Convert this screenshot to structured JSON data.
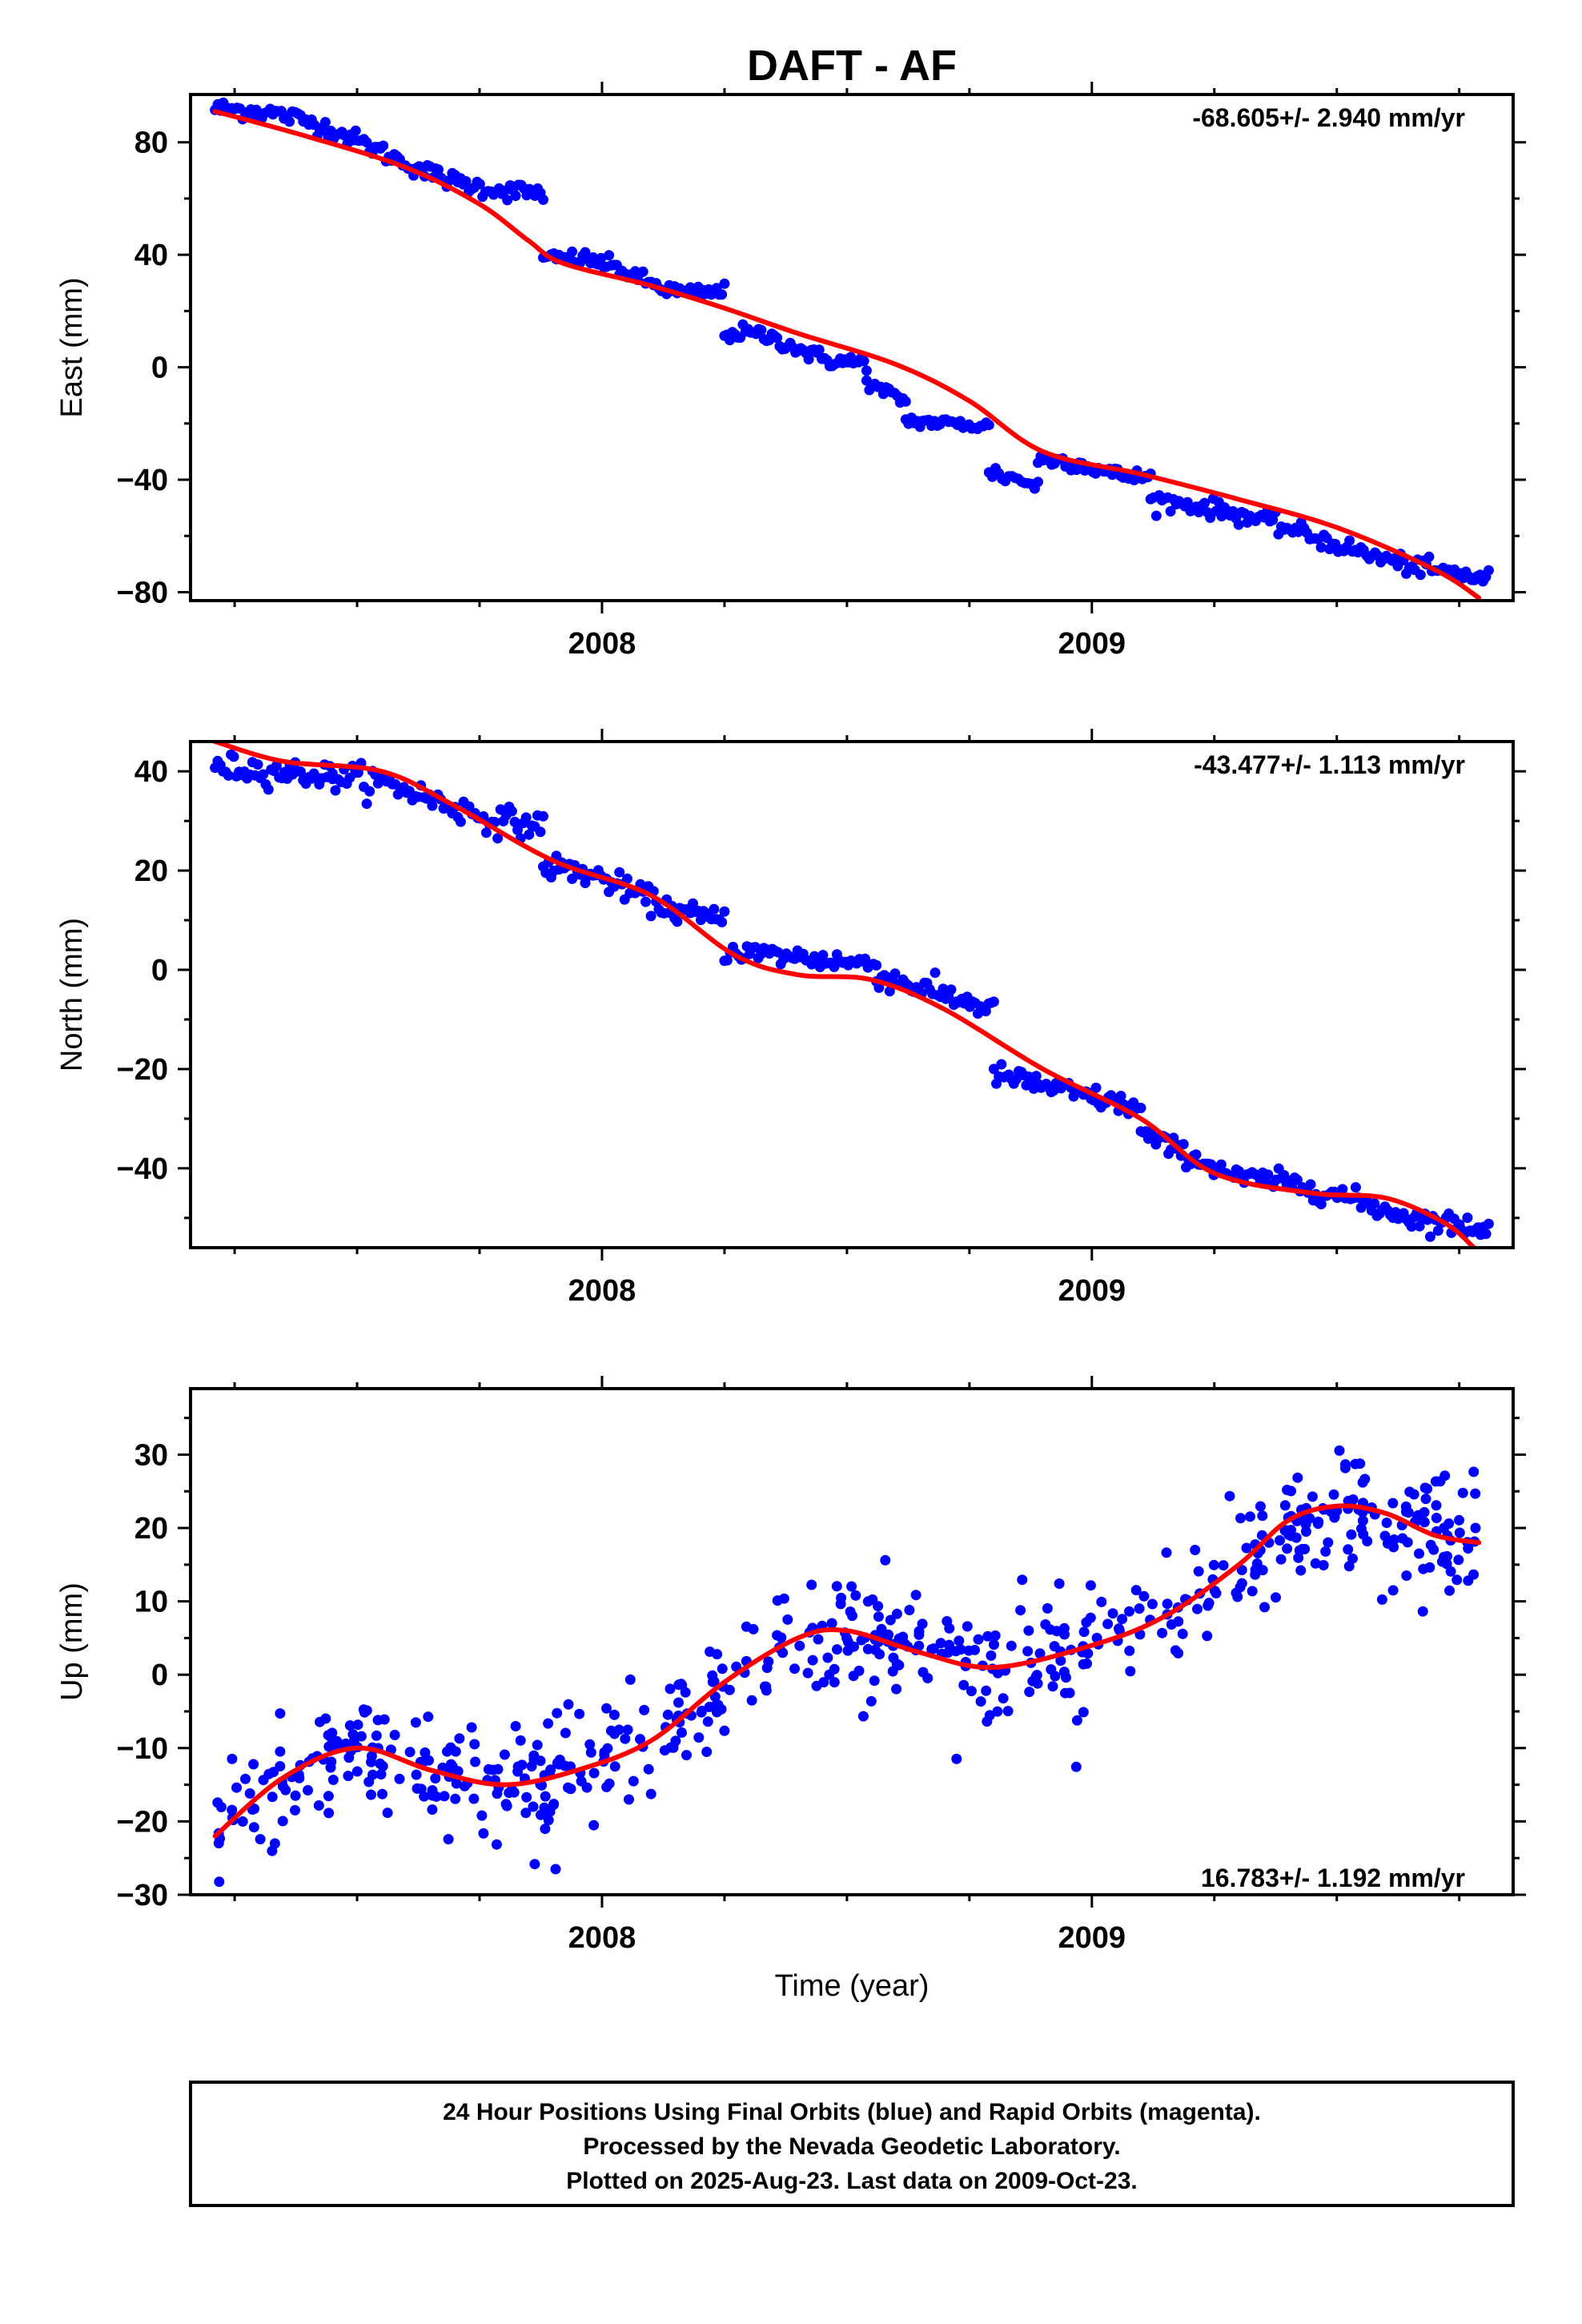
{
  "title": "DAFT - AF",
  "colors": {
    "data": "#0000ff",
    "model": "#ff0000",
    "frame": "#000000"
  },
  "chart_data": [
    {
      "type": "scatter",
      "id": "east",
      "ylabel": "East (mm)",
      "xlabel": "",
      "rate_label": "-68.605+/- 2.940 mm/yr",
      "rate_position": "top-right",
      "xlim": [
        2007.16,
        2009.86
      ],
      "ylim": [
        -83,
        97
      ],
      "yticks": [
        -80,
        -40,
        0,
        40,
        80
      ],
      "xtick_labels": [
        "2008",
        "2009"
      ],
      "xtick_values": [
        2008.0,
        2009.0
      ],
      "grid": false,
      "segments": [
        {
          "x0": 2007.21,
          "x1": 2007.88,
          "y0": 92,
          "y1": 62,
          "wave": 4,
          "noise": 1.6,
          "n": 120
        },
        {
          "x0": 2007.88,
          "x1": 2008.25,
          "y0": 38,
          "y1": 27,
          "wave": 3,
          "noise": 1.4,
          "n": 70
        },
        {
          "x0": 2008.25,
          "x1": 2008.54,
          "y0": 12,
          "y1": 2,
          "wave": 2,
          "noise": 1.4,
          "n": 55
        },
        {
          "x0": 2008.54,
          "x1": 2008.62,
          "y0": -6,
          "y1": -12,
          "wave": 0,
          "noise": 1.2,
          "n": 15
        },
        {
          "x0": 2008.62,
          "x1": 2008.79,
          "y0": -19,
          "y1": -21,
          "wave": 0,
          "noise": 1.1,
          "n": 30
        },
        {
          "x0": 2008.79,
          "x1": 2008.89,
          "y0": -37,
          "y1": -42,
          "wave": 0,
          "noise": 1.5,
          "n": 16
        },
        {
          "x0": 2008.89,
          "x1": 2009.12,
          "y0": -33,
          "y1": -39,
          "wave": 1,
          "noise": 1.3,
          "n": 42
        },
        {
          "x0": 2009.12,
          "x1": 2009.81,
          "y0": -47,
          "y1": -75,
          "wave": 2,
          "noise": 1.6,
          "n": 120
        }
      ],
      "model": {
        "x": [
          2007.21,
          2007.4,
          2007.6,
          2007.75,
          2007.85,
          2007.92,
          2008.1,
          2008.25,
          2008.4,
          2008.6,
          2008.75,
          2008.9,
          2009.1,
          2009.3,
          2009.5,
          2009.7,
          2009.79
        ],
        "y": [
          91,
          82,
          71,
          58,
          45,
          37,
          29,
          21,
          12,
          1,
          -12,
          -30,
          -38,
          -47,
          -57,
          -72,
          -82
        ]
      }
    },
    {
      "type": "scatter",
      "id": "north",
      "ylabel": "North (mm)",
      "xlabel": "",
      "rate_label": "-43.477+/- 1.113 mm/yr",
      "rate_position": "top-right",
      "xlim": [
        2007.16,
        2009.86
      ],
      "ylim": [
        -56,
        46
      ],
      "yticks": [
        -40,
        -20,
        0,
        20,
        40
      ],
      "xtick_labels": [
        "2008",
        "2009"
      ],
      "xtick_values": [
        2008.0,
        2009.0
      ],
      "grid": false,
      "segments": [
        {
          "x0": 2007.21,
          "x1": 2007.45,
          "y0": 41,
          "y1": 39,
          "wave": 0,
          "noise": 1.3,
          "n": 45
        },
        {
          "x0": 2007.45,
          "x1": 2007.88,
          "y0": 39,
          "y1": 29,
          "wave": 1,
          "noise": 1.4,
          "n": 75
        },
        {
          "x0": 2007.88,
          "x1": 2008.25,
          "y0": 21,
          "y1": 10,
          "wave": 1,
          "noise": 1.2,
          "n": 70
        },
        {
          "x0": 2008.25,
          "x1": 2008.56,
          "y0": 4,
          "y1": 1,
          "wave": 0,
          "noise": 1.1,
          "n": 55
        },
        {
          "x0": 2008.56,
          "x1": 2008.8,
          "y0": -1,
          "y1": -8,
          "wave": 0,
          "noise": 1.2,
          "n": 45
        },
        {
          "x0": 2008.8,
          "x1": 2009.1,
          "y0": -21,
          "y1": -28,
          "wave": 0,
          "noise": 1.1,
          "n": 60
        },
        {
          "x0": 2009.1,
          "x1": 2009.3,
          "y0": -33,
          "y1": -42,
          "wave": 0,
          "noise": 1.0,
          "n": 40
        },
        {
          "x0": 2009.3,
          "x1": 2009.81,
          "y0": -42,
          "y1": -52,
          "wave": 1,
          "noise": 1.1,
          "n": 95
        }
      ],
      "model": {
        "x": [
          2007.21,
          2007.35,
          2007.55,
          2007.7,
          2007.9,
          2008.1,
          2008.27,
          2008.4,
          2008.55,
          2008.7,
          2008.9,
          2009.1,
          2009.25,
          2009.45,
          2009.6,
          2009.72,
          2009.78
        ],
        "y": [
          46,
          42,
          40,
          33,
          22,
          15,
          3,
          -1,
          -2,
          -8,
          -20,
          -30,
          -41,
          -45,
          -46,
          -51,
          -56
        ]
      }
    },
    {
      "type": "scatter",
      "id": "up",
      "ylabel": "Up (mm)",
      "xlabel": "Time (year)",
      "rate_label": "16.783+/- 1.192 mm/yr",
      "rate_position": "bottom-right",
      "xlim": [
        2007.16,
        2009.86
      ],
      "ylim": [
        -30,
        39
      ],
      "yticks": [
        -30,
        -20,
        -10,
        0,
        10,
        20,
        30
      ],
      "xtick_labels": [
        "2008",
        "2009"
      ],
      "xtick_values": [
        2008.0,
        2009.0
      ],
      "grid": false,
      "noise": 4.0,
      "n": 620,
      "model": {
        "x": [
          2007.21,
          2007.35,
          2007.5,
          2007.65,
          2007.8,
          2007.95,
          2008.1,
          2008.25,
          2008.4,
          2008.5,
          2008.65,
          2008.8,
          2009.0,
          2009.15,
          2009.3,
          2009.4,
          2009.5,
          2009.6,
          2009.7,
          2009.79
        ],
        "y": [
          -22,
          -14,
          -10,
          -13,
          -15,
          -13,
          -9,
          -1,
          5,
          6,
          3,
          1,
          4,
          8,
          15,
          21,
          23,
          22,
          19,
          18
        ]
      }
    }
  ],
  "footer": {
    "lines": [
      "24 Hour Positions Using Final Orbits (blue) and Rapid Orbits (magenta).",
      "Processed by the Nevada Geodetic Laboratory.",
      "Plotted on 2025-Aug-23. Last data on 2009-Oct-23."
    ]
  }
}
